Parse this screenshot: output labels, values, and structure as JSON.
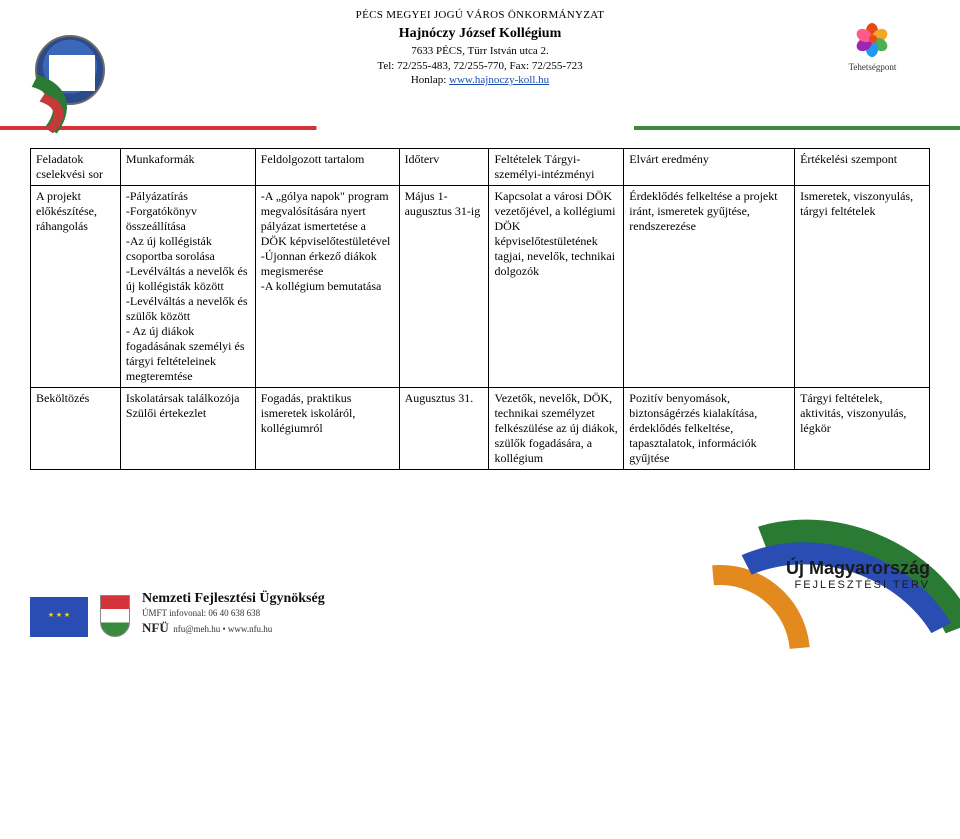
{
  "header": {
    "line1": "PÉCS MEGYEI JOGÚ VÁROS ÖNKORMÁNYZAT",
    "line2": "Hajnóczy József Kollégium",
    "line3": "7633 PÉCS, Türr István utca 2.",
    "line4": "Tel: 72/255-483, 72/255-770, Fax: 72/255-723",
    "line5_prefix": "Honlap: ",
    "line5_link": "www.hajnoczy-koll.hu",
    "tp_label": "Tehetségpont"
  },
  "petal_colors": [
    "#e64a19",
    "#f5a623",
    "#4caf50",
    "#2196f3",
    "#9c27b0",
    "#ff5a8a"
  ],
  "columns": [
    "Feladatok cselekvési sor",
    "Munkaformák",
    "Feldolgozott tartalom",
    "Időterv",
    "Feltételek Tárgyi-személyi-intézményi",
    "Elvárt eredmény",
    "Értékelési szempont"
  ],
  "rows": [
    {
      "c0": "A projekt előkészítése, ráhangolás",
      "c1": "-Pályázatírás\n-Forgatókönyv összeállítása\n-Az új kollégisták csoportba sorolása\n-Levélváltás a nevelők és új kollégisták között\n-Levélváltás a nevelők és szülők között\n- Az új diákok fogadásának személyi és tárgyi feltételeinek megteremtése",
      "c2": "-A „gólya napok\" program megvalósítására nyert pályázat ismertetése a DÖK képviselőtestületével\n-Újonnan érkező diákok megismerése\n-A kollégium bemutatása",
      "c3": "Május 1- augusztus 31-ig",
      "c4": "Kapcsolat a városi DÖK vezetőjével, a kollégiumi DÖK képviselőtestületének tagjai, nevelők, technikai dolgozók",
      "c5": "Érdeklődés felkeltése a projekt iránt, ismeretek gyűjtése, rendszerezése",
      "c6": "Ismeretek, viszonyulás, tárgyi feltételek"
    },
    {
      "c0": "Beköltözés",
      "c1": "Iskolatársak találkozója\nSzülői értekezlet",
      "c2": "Fogadás, praktikus ismeretek iskoláról, kollégiumról",
      "c3": "Augusztus 31.",
      "c4": "Vezetők, nevelők, DÖK, technikai személyzet felkészülése az új diákok, szülők fogadására, a kollégium",
      "c5": "Pozitív benyomások, biztonságérzés kialakítása, érdeklődés felkeltése, tapasztalatok, információk gyűjtése",
      "c6": "Tárgyi feltételek, aktivitás, viszonyulás, légkör"
    }
  ],
  "footer": {
    "agency": "Nemzeti Fejlesztési Ügynökség",
    "infoline": "ÚMFT infovonal: 06 40 638 638",
    "contact": "nfu@meh.hu • www.nfu.hu",
    "nfu": "NFÜ",
    "umft_l1": "Új Magyarország",
    "umft_l2": "FEJLESZTÉSI TERV"
  }
}
